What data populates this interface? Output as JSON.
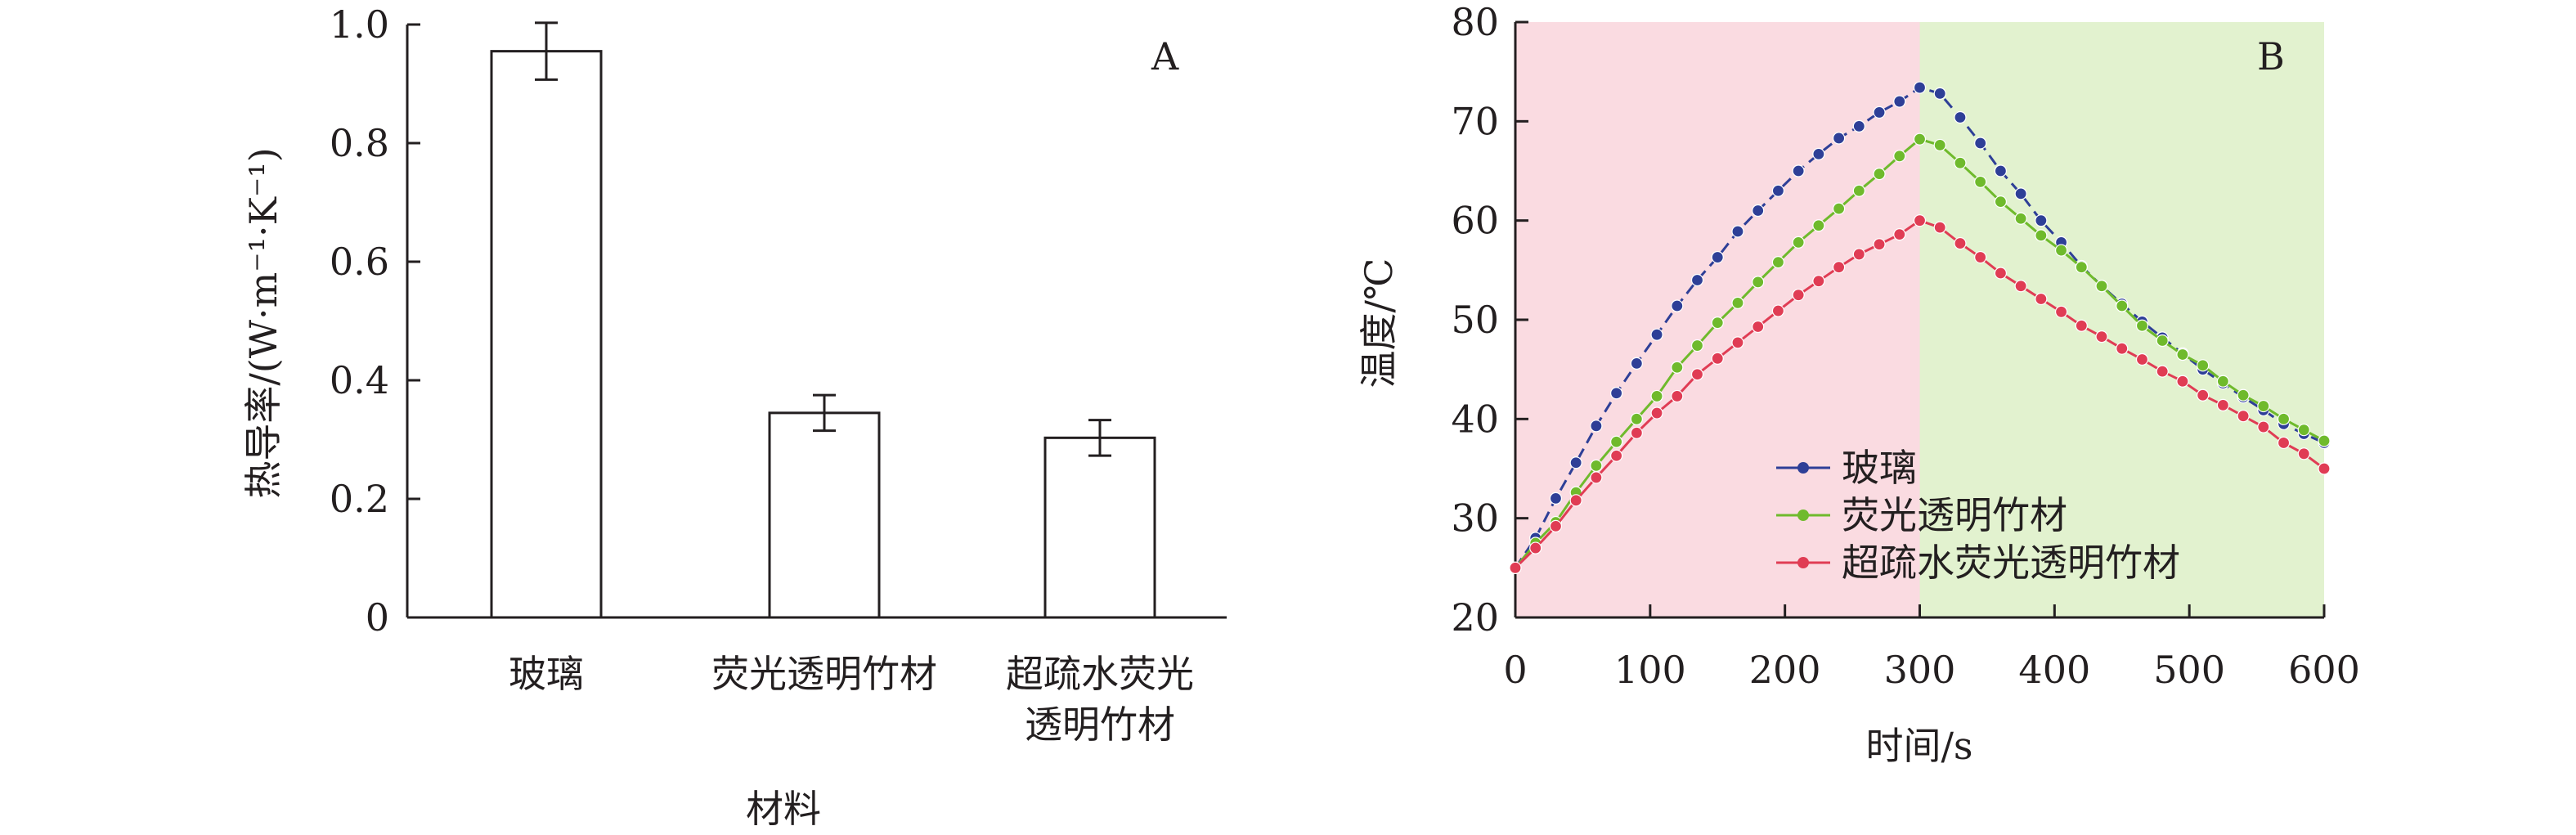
{
  "chart_data": [
    {
      "panel": "A",
      "type": "bar",
      "categories": [
        [
          "玻璃"
        ],
        [
          "荧光透明竹材"
        ],
        [
          "超疏水荧光",
          "透明竹材"
        ]
      ],
      "values": [
        0.955,
        0.345,
        0.303
      ],
      "errors": [
        0.048,
        0.03,
        0.03
      ],
      "xlabel": "材料",
      "ylabel": "热导率/(W·m⁻¹·K⁻¹)",
      "ylim": [
        0,
        1.0
      ],
      "yticks": [
        0,
        0.2,
        0.4,
        0.6,
        0.8,
        1.0
      ],
      "ytick_labels": [
        "0",
        "0.2",
        "0.4",
        "0.6",
        "0.8",
        "1.0"
      ],
      "grid": false
    },
    {
      "panel": "B",
      "type": "line",
      "xlabel": "时间/s",
      "ylabel": "温度/℃",
      "xlim": [
        0,
        600
      ],
      "ylim": [
        20,
        80
      ],
      "xticks": [
        0,
        100,
        200,
        300,
        400,
        500,
        600
      ],
      "yticks": [
        20,
        30,
        40,
        50,
        60,
        70,
        80
      ],
      "grid": false,
      "legend_position": "lower-center",
      "background_regions": [
        {
          "x": [
            0,
            300
          ],
          "color": "#fadbe1"
        },
        {
          "x": [
            300,
            600
          ],
          "color": "#e2f2cf"
        }
      ],
      "x": [
        0,
        15,
        30,
        45,
        60,
        75,
        90,
        105,
        120,
        135,
        150,
        165,
        180,
        195,
        210,
        225,
        240,
        255,
        270,
        285,
        300,
        315,
        330,
        345,
        360,
        375,
        390,
        405,
        420,
        435,
        450,
        465,
        480,
        495,
        510,
        525,
        540,
        555,
        570,
        585,
        600
      ],
      "series": [
        {
          "name": "玻璃",
          "color": "#2e3f97",
          "dashed": true,
          "values": [
            25.0,
            28.0,
            32.0,
            35.6,
            39.3,
            42.6,
            45.6,
            48.5,
            51.4,
            54.0,
            56.3,
            58.9,
            61.0,
            63.0,
            65.0,
            66.7,
            68.3,
            69.5,
            70.9,
            72.0,
            73.4,
            72.8,
            70.4,
            67.8,
            65.0,
            62.7,
            60.0,
            57.8,
            55.4,
            53.4,
            51.6,
            49.8,
            48.2,
            46.6,
            45.0,
            43.6,
            42.2,
            40.9,
            39.5,
            38.5,
            37.6
          ]
        },
        {
          "name": "荧光透明竹材",
          "color": "#6fba2c",
          "dashed": false,
          "values": [
            25.0,
            27.5,
            29.6,
            32.6,
            35.3,
            37.7,
            40.0,
            42.3,
            45.2,
            47.4,
            49.7,
            51.7,
            53.8,
            55.8,
            57.8,
            59.5,
            61.2,
            63.0,
            64.7,
            66.5,
            68.2,
            67.6,
            65.8,
            63.9,
            61.9,
            60.2,
            58.5,
            57.0,
            55.3,
            53.4,
            51.4,
            49.4,
            47.9,
            46.5,
            45.4,
            43.8,
            42.4,
            41.3,
            40.0,
            38.9,
            37.8
          ]
        },
        {
          "name": "超疏水荧光透明竹材",
          "color": "#e03c54",
          "dashed": false,
          "values": [
            25.0,
            27.0,
            29.2,
            31.8,
            34.1,
            36.3,
            38.6,
            40.6,
            42.3,
            44.5,
            46.1,
            47.7,
            49.3,
            50.9,
            52.5,
            53.9,
            55.3,
            56.6,
            57.6,
            58.6,
            60.0,
            59.3,
            57.7,
            56.3,
            54.7,
            53.4,
            52.1,
            50.8,
            49.4,
            48.3,
            47.1,
            46.0,
            44.8,
            43.8,
            42.4,
            41.4,
            40.3,
            39.2,
            37.6,
            36.5,
            35.0
          ]
        }
      ]
    }
  ]
}
